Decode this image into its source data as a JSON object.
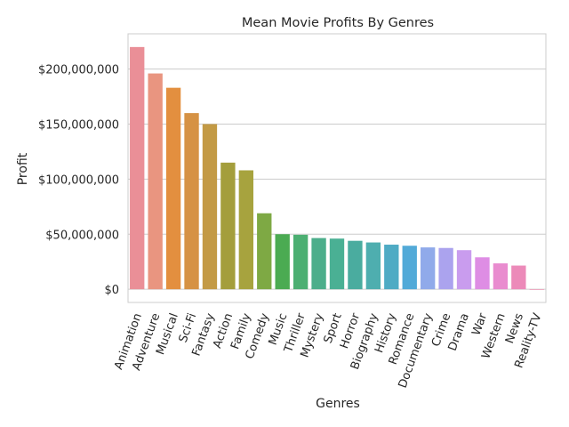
{
  "chart_data": {
    "type": "bar",
    "title": "Mean Movie Profits By Genres",
    "xlabel": "Genres",
    "ylabel": "Profit",
    "ylim": [
      -12000000,
      232000000
    ],
    "yticks": [
      0,
      50000000,
      100000000,
      150000000,
      200000000
    ],
    "ytick_labels": [
      "$0",
      "$50,000,000",
      "$100,000,000",
      "$150,000,000",
      "$200,000,000"
    ],
    "grid": "horizontal",
    "categories": [
      "Animation",
      "Adventure",
      "Musical",
      "Sci-Fi",
      "Fantasy",
      "Action",
      "Family",
      "Comedy",
      "Music",
      "Thriller",
      "Mystery",
      "Sport",
      "Horror",
      "Biography",
      "History",
      "Romance",
      "Documentary",
      "Crime",
      "Drama",
      "War",
      "Western",
      "News",
      "Reality-TV"
    ],
    "values": [
      220000000,
      196000000,
      183000000,
      160000000,
      150000000,
      115000000,
      108000000,
      69000000,
      50000000,
      49500000,
      46500000,
      46000000,
      44000000,
      42500000,
      40500000,
      39500000,
      38000000,
      37500000,
      35500000,
      29000000,
      23500000,
      21500000,
      -500000
    ],
    "colors": [
      "#ea8f97",
      "#e99580",
      "#e38f3f",
      "#d69244",
      "#c39a45",
      "#a49e3c",
      "#a7a33e",
      "#7ea944",
      "#4bab52",
      "#4caf72",
      "#4cae8b",
      "#4ab094",
      "#4aac9f",
      "#4eaeaf",
      "#4fabc4",
      "#52aad8",
      "#90aaea",
      "#aba3ee",
      "#c99cee",
      "#de8de4",
      "#e98ccf",
      "#ec8ab9",
      "#f2a2bd"
    ]
  }
}
